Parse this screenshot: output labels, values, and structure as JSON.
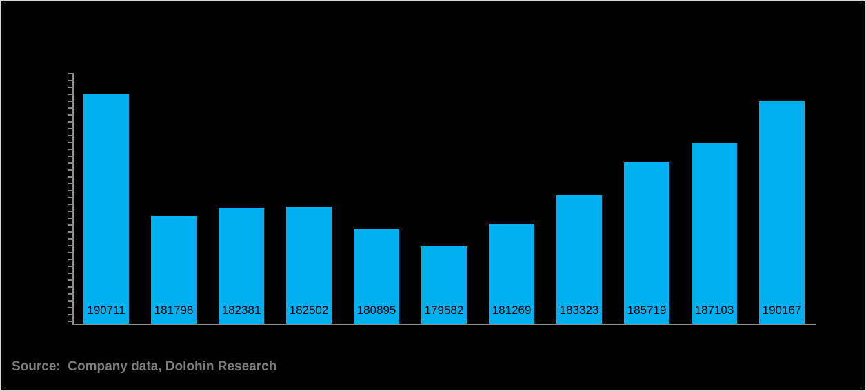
{
  "window": {
    "background": "#000000",
    "frame_border_color": "#d6d6d6"
  },
  "chart_data": {
    "type": "bar",
    "title": "",
    "values": [
      190711,
      181798,
      182381,
      182502,
      180895,
      179582,
      181269,
      183323,
      185719,
      187103,
      190167
    ],
    "data_labels": [
      "190711",
      "181798",
      "182381",
      "182502",
      "180895",
      "179582",
      "181269",
      "183323",
      "185719",
      "187103",
      "190167"
    ],
    "xlabel": "",
    "ylabel": "",
    "ylim": [
      174000,
      192200
    ],
    "y_tick_labels_visible": false,
    "y_minor_tick_count": 37,
    "x_tick_labels_visible": false,
    "grid": false,
    "legend": false,
    "bar_color": "#00b0f0",
    "data_label_color": "#000000",
    "axis_color": "#8e8e8e"
  },
  "footer": {
    "source_text": "Source:  Company data, Dolohin Research"
  }
}
